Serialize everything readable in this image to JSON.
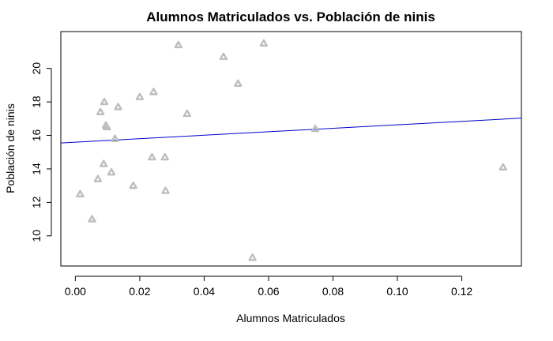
{
  "chart_data": {
    "type": "scatter",
    "title": "Alumnos Matriculados vs. Población de ninis",
    "xlabel": "Alumnos Matriculados",
    "ylabel": "Población de ninis",
    "xlim": [
      -0.0045,
      0.1385
    ],
    "ylim": [
      8.2,
      22.2
    ],
    "xticks": [
      0.0,
      0.02,
      0.04,
      0.06,
      0.08,
      0.1,
      0.12
    ],
    "xtick_labels": [
      "0.00",
      "0.02",
      "0.04",
      "0.06",
      "0.08",
      "0.10",
      "0.12"
    ],
    "yticks": [
      10,
      12,
      14,
      16,
      18,
      20
    ],
    "ytick_labels": [
      "10",
      "12",
      "14",
      "16",
      "18",
      "20"
    ],
    "grid": false,
    "marker": "triangle",
    "point_color": "#bebebe",
    "line_color": "#0000cd",
    "points": [
      {
        "x": 0.0015,
        "y": 12.5
      },
      {
        "x": 0.0052,
        "y": 11.0
      },
      {
        "x": 0.007,
        "y": 13.4
      },
      {
        "x": 0.0078,
        "y": 17.4
      },
      {
        "x": 0.0088,
        "y": 14.3
      },
      {
        "x": 0.009,
        "y": 18.0
      },
      {
        "x": 0.0095,
        "y": 16.6
      },
      {
        "x": 0.0098,
        "y": 16.5
      },
      {
        "x": 0.0112,
        "y": 13.8
      },
      {
        "x": 0.0123,
        "y": 15.8
      },
      {
        "x": 0.0133,
        "y": 17.7
      },
      {
        "x": 0.018,
        "y": 13.0
      },
      {
        "x": 0.02,
        "y": 18.3
      },
      {
        "x": 0.0238,
        "y": 14.7
      },
      {
        "x": 0.0243,
        "y": 18.6
      },
      {
        "x": 0.0278,
        "y": 14.7
      },
      {
        "x": 0.028,
        "y": 12.7
      },
      {
        "x": 0.032,
        "y": 21.4
      },
      {
        "x": 0.0347,
        "y": 17.3
      },
      {
        "x": 0.046,
        "y": 20.7
      },
      {
        "x": 0.0505,
        "y": 19.1
      },
      {
        "x": 0.055,
        "y": 8.7
      },
      {
        "x": 0.0585,
        "y": 21.5
      },
      {
        "x": 0.0745,
        "y": 16.4
      },
      {
        "x": 0.1328,
        "y": 14.1
      }
    ],
    "regression_line": {
      "x": [
        -0.0045,
        0.1385
      ],
      "y": [
        15.55,
        17.03
      ]
    }
  }
}
